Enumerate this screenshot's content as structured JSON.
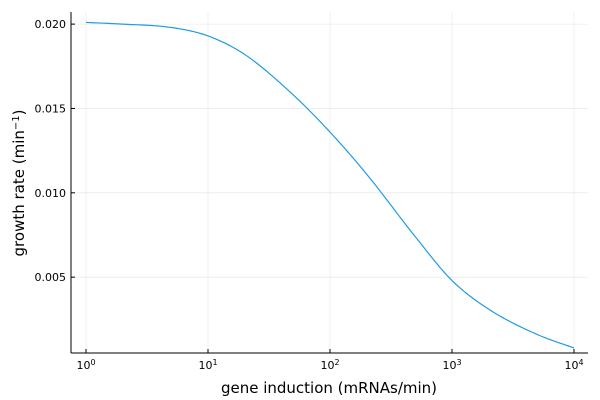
{
  "chart_data": {
    "type": "line",
    "xlabel": "gene induction (mRNAs/min)",
    "ylabel": "growth rate (min",
    "ylabel_sup": "−1",
    "ylabel_close": ")",
    "x_scale": "log10",
    "xlim": [
      1,
      10000
    ],
    "ylim": [
      0.0008,
      0.0206
    ],
    "x_ticks": [
      {
        "value": 1,
        "base": "10",
        "exp": "0"
      },
      {
        "value": 10,
        "base": "10",
        "exp": "1"
      },
      {
        "value": 100,
        "base": "10",
        "exp": "2"
      },
      {
        "value": 1000,
        "base": "10",
        "exp": "3"
      },
      {
        "value": 10000,
        "base": "10",
        "exp": "4"
      }
    ],
    "y_ticks": [
      {
        "value": 0.005,
        "label": "0.005"
      },
      {
        "value": 0.01,
        "label": "0.010"
      },
      {
        "value": 0.015,
        "label": "0.015"
      },
      {
        "value": 0.02,
        "label": "0.020"
      }
    ],
    "grid": true,
    "legend": "none",
    "series": [
      {
        "color": "#1f9be6",
        "x": [
          1,
          2,
          5,
          10,
          20,
          50,
          100,
          200,
          500,
          1000,
          2000,
          5000,
          10000
        ],
        "y": [
          0.0201,
          0.02,
          0.0198,
          0.0193,
          0.0182,
          0.0158,
          0.0136,
          0.0111,
          0.0074,
          0.0048,
          0.0031,
          0.0016,
          0.0008
        ]
      }
    ]
  }
}
